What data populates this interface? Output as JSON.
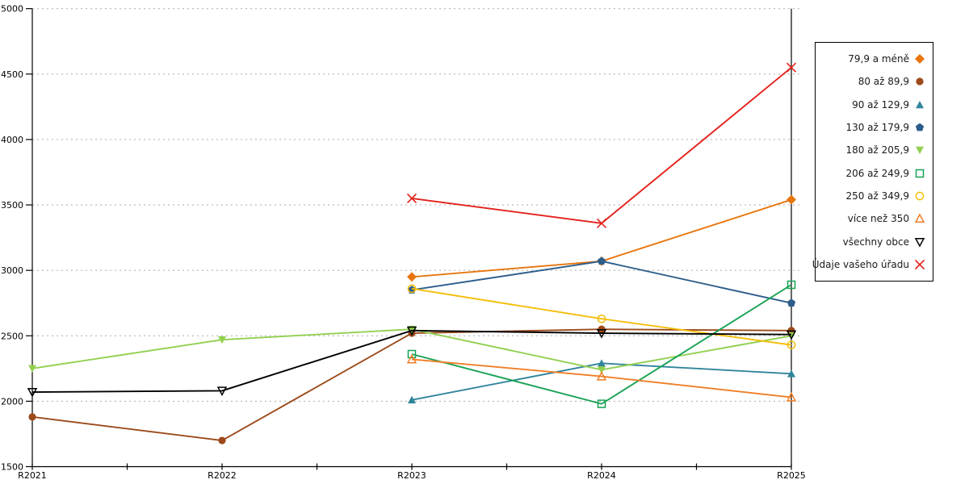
{
  "chart_data": {
    "type": "line",
    "categories": [
      "R2021",
      "R2022",
      "R2023",
      "R2024",
      "R2025"
    ],
    "ylim": [
      1500,
      5000
    ],
    "ytick_step": 500,
    "ytick_labels": [
      "1500",
      "2000",
      "2500",
      "3000",
      "3500",
      "4000",
      "4500",
      "5000"
    ],
    "grid": "horizontal-dashed",
    "legend_position": "right",
    "axis_color": "#000000",
    "gridline_color": "#aaaaaa",
    "series": [
      {
        "label": "79,9 a méně",
        "color": "#E8750E",
        "marker": "diamond",
        "filled": true,
        "values": [
          null,
          null,
          2950,
          3070,
          3540
        ]
      },
      {
        "label": "80 až 89,9",
        "color": "#9C4A1A",
        "marker": "circle",
        "filled": true,
        "values": [
          1880,
          1700,
          2520,
          2550,
          2540
        ]
      },
      {
        "label": "90 až 129,9",
        "color": "#31859C",
        "marker": "triangle-up",
        "filled": true,
        "values": [
          null,
          null,
          2010,
          2290,
          2210
        ]
      },
      {
        "label": "130 až 179,9",
        "color": "#2D5E8B",
        "marker": "pentagon",
        "filled": true,
        "values": [
          null,
          null,
          2850,
          3070,
          2750
        ]
      },
      {
        "label": "180 až 205,9",
        "color": "#92D050",
        "marker": "triangle-down",
        "filled": true,
        "values": [
          2250,
          2470,
          2550,
          2240,
          2500
        ]
      },
      {
        "label": "206 až 249,9",
        "color": "#17A254",
        "marker": "square",
        "filled": false,
        "values": [
          null,
          null,
          2360,
          1980,
          2890
        ]
      },
      {
        "label": "250 až 349,9",
        "color": "#F5BE0B",
        "marker": "circle",
        "filled": false,
        "values": [
          null,
          null,
          2860,
          2630,
          2430
        ]
      },
      {
        "label": "více než 350",
        "color": "#F07E26",
        "marker": "triangle-up",
        "filled": false,
        "values": [
          null,
          null,
          2320,
          2190,
          2030
        ]
      },
      {
        "label": "všechny obce",
        "color": "#000000",
        "marker": "triangle-down",
        "filled": false,
        "values": [
          2070,
          2080,
          2540,
          2520,
          2510
        ]
      },
      {
        "label": "Údaje vašeho úřadu",
        "color": "#E3211B",
        "marker": "x",
        "filled": false,
        "values": [
          null,
          null,
          3550,
          3360,
          4550
        ]
      }
    ]
  }
}
